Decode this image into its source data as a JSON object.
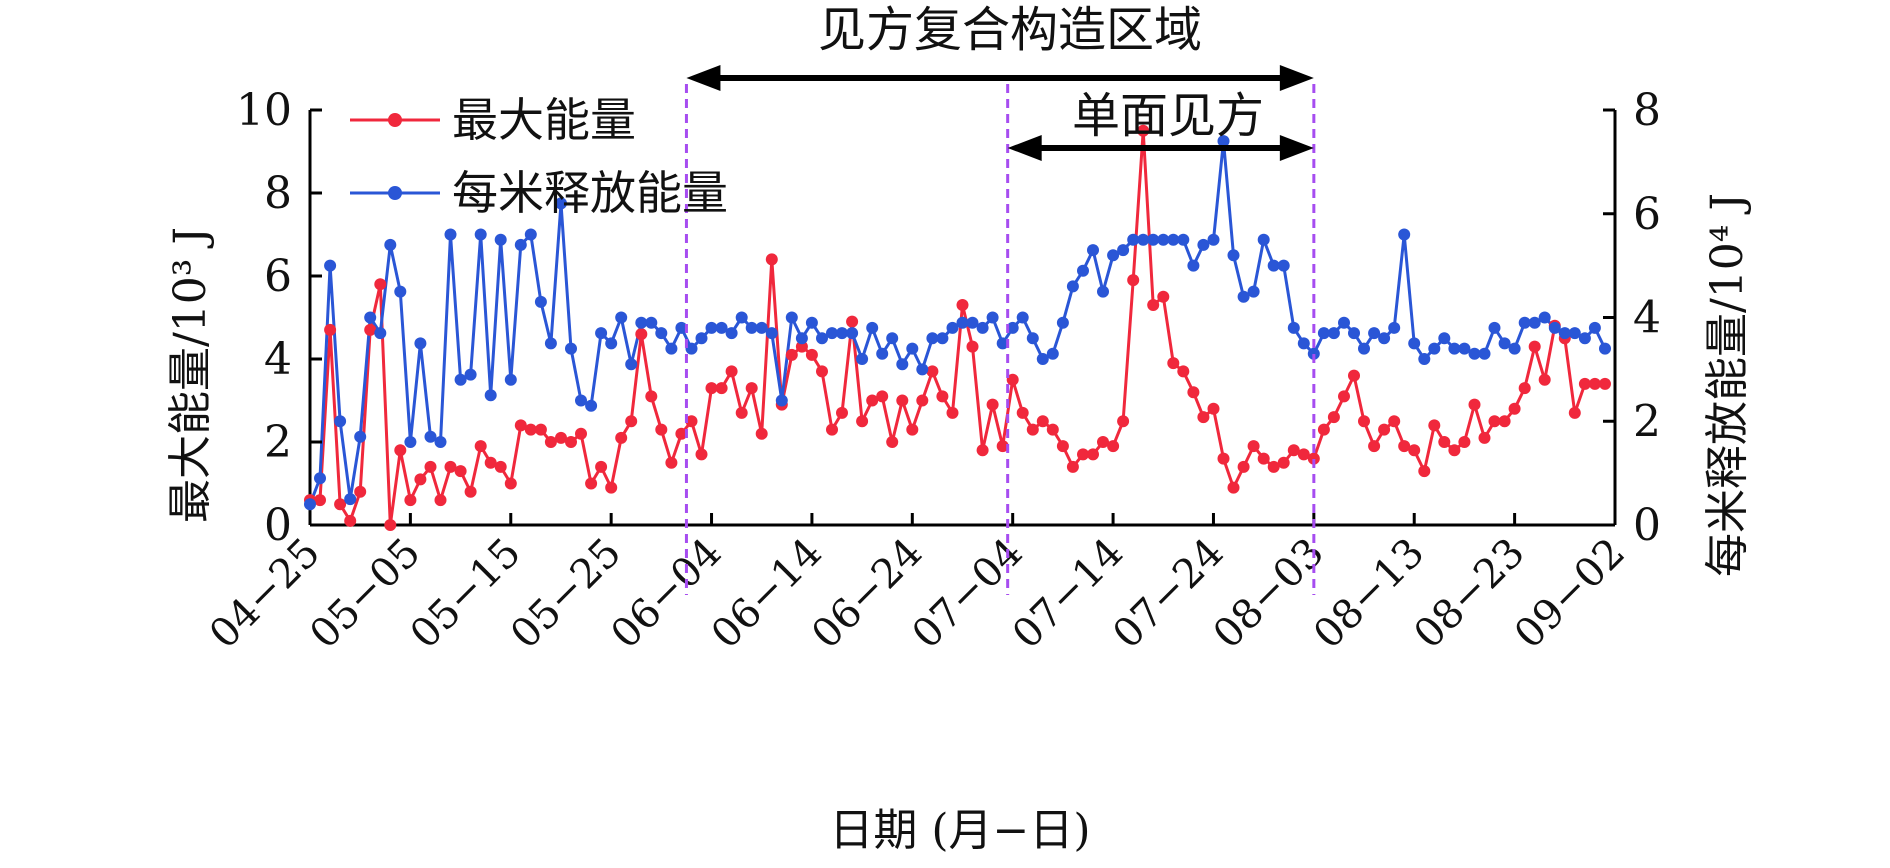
{
  "chart_data": {
    "type": "line",
    "title": "",
    "xlabel": "日期 (月−日)",
    "ylabel_left": "最大能量/10³ J",
    "ylabel_right": "每米释放能量/10⁴ J",
    "x_ticks": [
      "04−25",
      "05−05",
      "05−15",
      "05−25",
      "06−04",
      "06−14",
      "06−24",
      "07−04",
      "07−14",
      "07−24",
      "08−03",
      "08−13",
      "08−23",
      "09−02"
    ],
    "xlim_days": [
      0,
      130
    ],
    "ylim_left": [
      0,
      10
    ],
    "ylim_right": [
      0,
      8
    ],
    "yticks_left": [
      "0",
      "2",
      "4",
      "6",
      "8",
      "10"
    ],
    "yticks_right": [
      "0",
      "2",
      "4",
      "6",
      "8"
    ],
    "grid": false,
    "legend_position": "top-left",
    "annotations": {
      "region_complex": "见方复合构造区域",
      "region_single": "单面见方",
      "divider_days": [
        37.5,
        69.5,
        100
      ]
    },
    "series": [
      {
        "name": "最大能量",
        "axis": "left",
        "color": "#f0283c",
        "days": [
          0,
          1,
          2,
          3,
          4,
          5,
          6,
          7,
          8,
          9,
          10,
          11,
          12,
          13,
          14,
          15,
          16,
          17,
          18,
          19,
          20,
          21,
          22,
          23,
          24,
          25,
          26,
          27,
          28,
          29,
          30,
          31,
          32,
          33,
          34,
          35,
          36,
          37,
          38,
          39,
          40,
          41,
          42,
          43,
          44,
          45,
          46,
          47,
          48,
          49,
          50,
          51,
          52,
          53,
          54,
          55,
          56,
          57,
          58,
          59,
          60,
          61,
          62,
          63,
          64,
          65,
          66,
          67,
          68,
          69,
          70,
          71,
          72,
          73,
          74,
          75,
          76,
          77,
          78,
          79,
          80,
          81,
          82,
          83,
          84,
          85,
          86,
          87,
          88,
          89,
          90,
          91,
          92,
          93,
          94,
          95,
          96,
          97,
          98,
          99,
          100,
          101,
          102,
          103,
          104,
          105,
          106,
          107,
          108,
          109,
          110,
          111,
          112,
          113,
          114,
          115,
          116,
          117,
          118,
          119,
          120,
          121,
          122,
          123,
          124,
          125,
          126,
          127,
          128,
          129
        ],
        "values": [
          0.6,
          0.6,
          4.7,
          0.5,
          0.1,
          0.8,
          4.7,
          5.8,
          0.0,
          1.8,
          0.6,
          1.1,
          1.4,
          0.6,
          1.4,
          1.3,
          0.8,
          1.9,
          1.5,
          1.4,
          1.0,
          2.4,
          2.3,
          2.3,
          2.0,
          2.1,
          2.0,
          2.2,
          1.0,
          1.4,
          0.9,
          2.1,
          2.5,
          4.6,
          3.1,
          2.3,
          1.5,
          2.2,
          2.5,
          1.7,
          3.3,
          3.3,
          3.7,
          2.7,
          3.3,
          2.2,
          6.4,
          2.9,
          4.1,
          4.3,
          4.1,
          3.7,
          2.3,
          2.7,
          4.9,
          2.5,
          3.0,
          3.1,
          2.0,
          3.0,
          2.3,
          3.0,
          3.7,
          3.1,
          2.7,
          5.3,
          4.3,
          1.8,
          2.9,
          1.9,
          3.5,
          2.7,
          2.3,
          2.5,
          2.3,
          1.9,
          1.4,
          1.7,
          1.7,
          2.0,
          1.9,
          2.5,
          5.9,
          9.5,
          5.3,
          5.5,
          3.9,
          3.7,
          3.2,
          2.6,
          2.8,
          1.6,
          0.9,
          1.4,
          1.9,
          1.6,
          1.4,
          1.5,
          1.8,
          1.7,
          1.6,
          2.3,
          2.6,
          3.1,
          3.6,
          2.5,
          1.9,
          2.3,
          2.5,
          1.9,
          1.8,
          1.3,
          2.4,
          2.0,
          1.8,
          2.0,
          2.9,
          2.1,
          2.5,
          2.5,
          2.8,
          3.3,
          4.3,
          3.5,
          4.8,
          4.5,
          2.7,
          3.4,
          3.4,
          3.4
        ]
      },
      {
        "name": "每米释放能量",
        "axis": "right",
        "color": "#2a56d6",
        "days": [
          0,
          1,
          2,
          3,
          4,
          5,
          6,
          7,
          8,
          9,
          10,
          11,
          12,
          13,
          14,
          15,
          16,
          17,
          18,
          19,
          20,
          21,
          22,
          23,
          24,
          25,
          26,
          27,
          28,
          29,
          30,
          31,
          32,
          33,
          34,
          35,
          36,
          37,
          38,
          39,
          40,
          41,
          42,
          43,
          44,
          45,
          46,
          47,
          48,
          49,
          50,
          51,
          52,
          53,
          54,
          55,
          56,
          57,
          58,
          59,
          60,
          61,
          62,
          63,
          64,
          65,
          66,
          67,
          68,
          69,
          70,
          71,
          72,
          73,
          74,
          75,
          76,
          77,
          78,
          79,
          80,
          81,
          82,
          83,
          84,
          85,
          86,
          87,
          88,
          89,
          90,
          91,
          92,
          93,
          94,
          95,
          96,
          97,
          98,
          99,
          100,
          101,
          102,
          103,
          104,
          105,
          106,
          107,
          108,
          109,
          110,
          111,
          112,
          113,
          114,
          115,
          116,
          117,
          118,
          119,
          120,
          121,
          122,
          123,
          124,
          125,
          126,
          127,
          128,
          129
        ],
        "values": [
          0.4,
          0.9,
          5.0,
          2.0,
          0.5,
          1.7,
          4.0,
          3.7,
          5.4,
          4.5,
          1.6,
          3.5,
          1.7,
          1.6,
          5.6,
          2.8,
          2.9,
          5.6,
          2.5,
          5.5,
          2.8,
          5.4,
          5.6,
          4.3,
          3.5,
          6.2,
          3.4,
          2.4,
          2.3,
          3.7,
          3.5,
          4.0,
          3.1,
          3.9,
          3.9,
          3.7,
          3.4,
          3.8,
          3.4,
          3.6,
          3.8,
          3.8,
          3.7,
          4.0,
          3.8,
          3.8,
          3.7,
          2.4,
          4.0,
          3.6,
          3.9,
          3.6,
          3.7,
          3.7,
          3.7,
          3.2,
          3.8,
          3.3,
          3.6,
          3.1,
          3.4,
          3.0,
          3.6,
          3.6,
          3.8,
          3.9,
          3.9,
          3.8,
          4.0,
          3.5,
          3.8,
          4.0,
          3.6,
          3.2,
          3.3,
          3.9,
          4.6,
          4.9,
          5.3,
          4.5,
          5.2,
          5.3,
          5.5,
          5.5,
          5.5,
          5.5,
          5.5,
          5.5,
          5.0,
          5.4,
          5.5,
          7.4,
          5.2,
          4.4,
          4.5,
          5.5,
          5.0,
          5.0,
          3.8,
          3.5,
          3.3,
          3.7,
          3.7,
          3.9,
          3.7,
          3.4,
          3.7,
          3.6,
          3.8,
          5.6,
          3.5,
          3.2,
          3.4,
          3.6,
          3.4,
          3.4,
          3.3,
          3.3,
          3.8,
          3.5,
          3.4,
          3.9,
          3.9,
          4.0,
          3.8,
          3.7,
          3.7,
          3.6,
          3.8,
          3.4
        ]
      }
    ]
  }
}
